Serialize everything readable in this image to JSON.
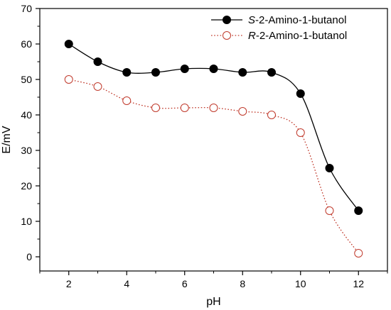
{
  "chart_data": {
    "type": "line",
    "xlabel": "pH",
    "ylabel": "E/mV",
    "xlim": [
      1,
      13
    ],
    "ylim": [
      -4,
      70
    ],
    "xticks": [
      2,
      4,
      6,
      8,
      10,
      12
    ],
    "yticks": [
      0,
      10,
      20,
      30,
      40,
      50,
      60,
      70
    ],
    "x": [
      2,
      3,
      4,
      5,
      6,
      7,
      8,
      9,
      10,
      11,
      12
    ],
    "legend_position": "top-right",
    "grid": false,
    "series": [
      {
        "name_prefix": "S",
        "name_rest": "-2-Amino-1-butanol",
        "values": [
          60,
          55,
          52,
          52,
          53,
          53,
          52,
          52,
          46,
          25,
          13
        ],
        "color": "#000000",
        "line_style": "solid",
        "marker": "filled-circle"
      },
      {
        "name_prefix": "R",
        "name_rest": "-2-Amino-1-butanol",
        "values": [
          50,
          48,
          44,
          42,
          42,
          42,
          41,
          40,
          35,
          13,
          1
        ],
        "color": "#c0392b",
        "line_style": "dotted",
        "marker": "open-circle"
      }
    ]
  }
}
